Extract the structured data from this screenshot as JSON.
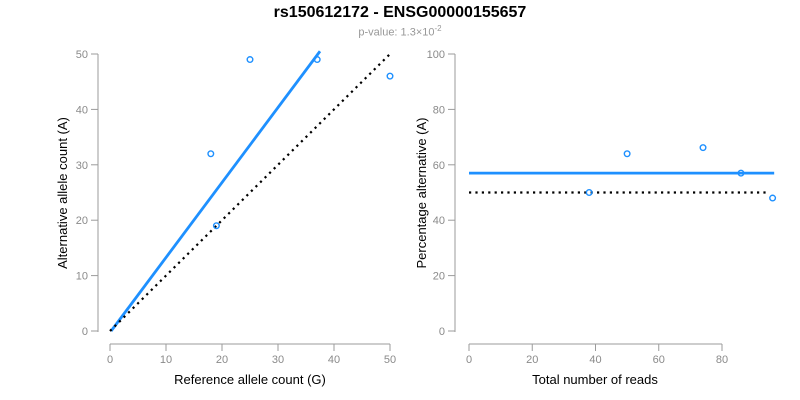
{
  "header": {
    "title": "rs150612172 - ENSG00000155657",
    "subtitle_base": "p-value: 1.3×10",
    "subtitle_exponent": "-2"
  },
  "colors": {
    "accent_blue": "#1E90FF",
    "line_black": "#000000",
    "axis_gray": "#9b9b9b",
    "tick_label_gray": "#8a8a8a",
    "subtitle_gray": "#989898",
    "title_black": "#000000"
  },
  "chart_data": [
    {
      "type": "scatter",
      "panel": "left",
      "xlabel": "Reference allele count (G)",
      "ylabel": "Alternative allele count (A)",
      "xlim": [
        0,
        50
      ],
      "ylim": [
        0,
        50
      ],
      "xticks": [
        0,
        10,
        20,
        30,
        40,
        50
      ],
      "yticks": [
        0,
        10,
        20,
        30,
        40,
        50
      ],
      "grid": false,
      "legend": null,
      "points": [
        {
          "x": 18,
          "y": 32
        },
        {
          "x": 19,
          "y": 19
        },
        {
          "x": 25,
          "y": 49
        },
        {
          "x": 37,
          "y": 49
        },
        {
          "x": 50,
          "y": 46
        }
      ],
      "lines": [
        {
          "name": "fit-line",
          "style": "solid",
          "color": "#1E90FF",
          "x1": 0.2,
          "y1": 0,
          "x2": 37.5,
          "y2": 50.5
        },
        {
          "name": "identity-line",
          "style": "dotted",
          "color": "#000000",
          "x1": 0,
          "y1": 0,
          "x2": 50,
          "y2": 50
        }
      ]
    },
    {
      "type": "scatter",
      "panel": "right",
      "xlabel": "Total number of reads",
      "ylabel": "Percentage alternative (A)",
      "xlim": [
        0,
        100
      ],
      "ylim": [
        0,
        100
      ],
      "xticks": [
        0,
        20,
        40,
        60,
        80
      ],
      "yticks": [
        0,
        20,
        40,
        60,
        80,
        100
      ],
      "grid": false,
      "legend": null,
      "points": [
        {
          "x": 38,
          "y": 50
        },
        {
          "x": 50,
          "y": 64
        },
        {
          "x": 74,
          "y": 66.2
        },
        {
          "x": 86,
          "y": 57
        },
        {
          "x": 96,
          "y": 48
        }
      ],
      "lines": [
        {
          "name": "mean-percentage-line",
          "style": "solid",
          "color": "#1E90FF",
          "x1": 0,
          "y1": 57,
          "x2": 96.5,
          "y2": 57
        },
        {
          "name": "expected-50pct-line",
          "style": "dotted",
          "color": "#000000",
          "x1": 0,
          "y1": 50,
          "x2": 95,
          "y2": 50
        }
      ]
    }
  ]
}
